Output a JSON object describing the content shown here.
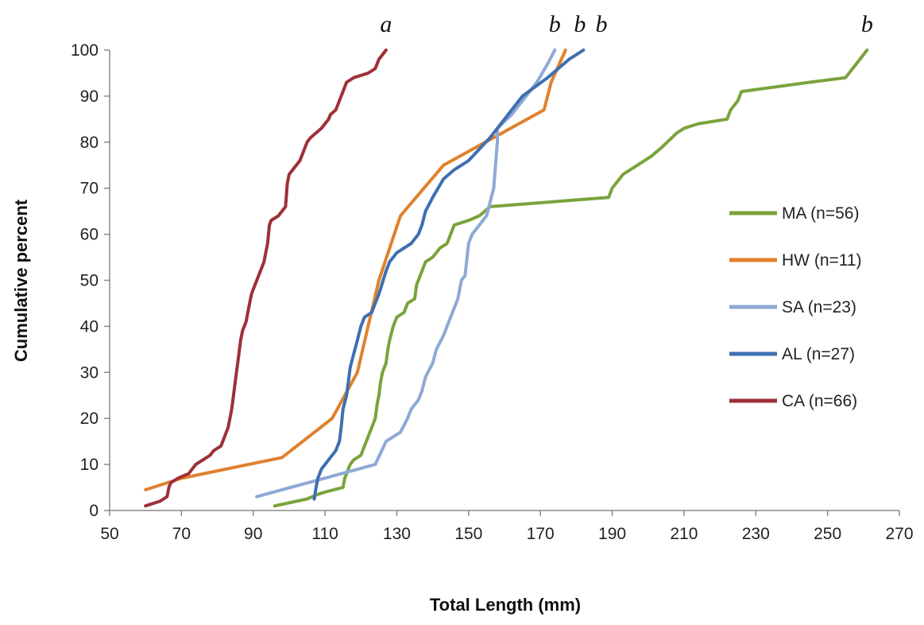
{
  "chart_data": {
    "type": "line",
    "title": "",
    "xlabel": "Total Length (mm)",
    "ylabel": "Cumulative percent",
    "xlim": [
      50,
      270
    ],
    "ylim": [
      0,
      100
    ],
    "xticks": [
      "50",
      "70",
      "90",
      "110",
      "130",
      "150",
      "170",
      "190",
      "210",
      "230",
      "250",
      "270"
    ],
    "yticks": [
      "0",
      "10",
      "20",
      "30",
      "40",
      "50",
      "60",
      "70",
      "80",
      "90",
      "100"
    ],
    "grid": false,
    "legend_position": "right",
    "series": [
      {
        "name": "MA (n=56)",
        "color": "#7aa33b",
        "points": [
          [
            96,
            1
          ],
          [
            105,
            2.5
          ],
          [
            108,
            3.5
          ],
          [
            110,
            4
          ],
          [
            115,
            5
          ],
          [
            115.5,
            7
          ],
          [
            116,
            8
          ],
          [
            117,
            10
          ],
          [
            118,
            11
          ],
          [
            120,
            12
          ],
          [
            121,
            14
          ],
          [
            122,
            16
          ],
          [
            123,
            18
          ],
          [
            124,
            20
          ],
          [
            124.5,
            23
          ],
          [
            125,
            25
          ],
          [
            125.5,
            28
          ],
          [
            126,
            30
          ],
          [
            127,
            32
          ],
          [
            127.5,
            35
          ],
          [
            128,
            37
          ],
          [
            129,
            40
          ],
          [
            130,
            42
          ],
          [
            132,
            43
          ],
          [
            133,
            45
          ],
          [
            135,
            46
          ],
          [
            135.5,
            49
          ],
          [
            136,
            50
          ],
          [
            137,
            52
          ],
          [
            138,
            54
          ],
          [
            140,
            55
          ],
          [
            141,
            56
          ],
          [
            142,
            57
          ],
          [
            144,
            58
          ],
          [
            145,
            60
          ],
          [
            146,
            62
          ],
          [
            150,
            63
          ],
          [
            153,
            64
          ],
          [
            156,
            66
          ],
          [
            189,
            68
          ],
          [
            190,
            70
          ],
          [
            192,
            72
          ],
          [
            193,
            73
          ],
          [
            197,
            75
          ],
          [
            201,
            77
          ],
          [
            204,
            79
          ],
          [
            208,
            82
          ],
          [
            210,
            83
          ],
          [
            214,
            84
          ],
          [
            222,
            85
          ],
          [
            223,
            87
          ],
          [
            225,
            89
          ],
          [
            226,
            91
          ],
          [
            245,
            93
          ],
          [
            255,
            94
          ],
          [
            258,
            97
          ],
          [
            261,
            100
          ]
        ]
      },
      {
        "name": "HW (n=11)",
        "color": "#e0812e",
        "points": [
          [
            60,
            4.5
          ],
          [
            70,
            7
          ],
          [
            98,
            11.5
          ],
          [
            112,
            20
          ],
          [
            119,
            30
          ],
          [
            122,
            40
          ],
          [
            125,
            50
          ],
          [
            131,
            64
          ],
          [
            143,
            75
          ],
          [
            150,
            78
          ],
          [
            171,
            87
          ],
          [
            173,
            93
          ],
          [
            177,
            100
          ]
        ]
      },
      {
        "name": "SA (n=23)",
        "color": "#8ea9d6",
        "points": [
          [
            91,
            3
          ],
          [
            124,
            10
          ],
          [
            127,
            15
          ],
          [
            131,
            17
          ],
          [
            133,
            20
          ],
          [
            134,
            22
          ],
          [
            136,
            24
          ],
          [
            137,
            26
          ],
          [
            138,
            29
          ],
          [
            140,
            32
          ],
          [
            141,
            35
          ],
          [
            143,
            38
          ],
          [
            145,
            42
          ],
          [
            147,
            46
          ],
          [
            148,
            50
          ],
          [
            149,
            51
          ],
          [
            150,
            58
          ],
          [
            151,
            60
          ],
          [
            153,
            62
          ],
          [
            155,
            64
          ],
          [
            156,
            67
          ],
          [
            157,
            70
          ],
          [
            158,
            80
          ],
          [
            158,
            83
          ],
          [
            162,
            86
          ],
          [
            165,
            89
          ],
          [
            169,
            93
          ],
          [
            172,
            97
          ],
          [
            174,
            100
          ]
        ]
      },
      {
        "name": "AL (n=27)",
        "color": "#3e6fb0",
        "points": [
          [
            107,
            2.5
          ],
          [
            107.5,
            5
          ],
          [
            108,
            7
          ],
          [
            109,
            9
          ],
          [
            110,
            10
          ],
          [
            113,
            13
          ],
          [
            114,
            15
          ],
          [
            114.5,
            18
          ],
          [
            115,
            22
          ],
          [
            116,
            25
          ],
          [
            116.5,
            28
          ],
          [
            117,
            31
          ],
          [
            118,
            34
          ],
          [
            119,
            37
          ],
          [
            120,
            40
          ],
          [
            121,
            42
          ],
          [
            123,
            43
          ],
          [
            124,
            45
          ],
          [
            125,
            47
          ],
          [
            127,
            52
          ],
          [
            128,
            54
          ],
          [
            130,
            56
          ],
          [
            134,
            58
          ],
          [
            136,
            60
          ],
          [
            137,
            62
          ],
          [
            138,
            65
          ],
          [
            140,
            68
          ],
          [
            143,
            72
          ],
          [
            146,
            74
          ],
          [
            148,
            75
          ],
          [
            150,
            76
          ],
          [
            156,
            81
          ],
          [
            158,
            83
          ],
          [
            162,
            87
          ],
          [
            165,
            90
          ],
          [
            172,
            94
          ],
          [
            178,
            98
          ],
          [
            182,
            100
          ]
        ]
      },
      {
        "name": "CA (n=66)",
        "color": "#9e3037",
        "points": [
          [
            60,
            1
          ],
          [
            64,
            2
          ],
          [
            66,
            3
          ],
          [
            66.5,
            5
          ],
          [
            67,
            6
          ],
          [
            69,
            7
          ],
          [
            72,
            8
          ],
          [
            73,
            9
          ],
          [
            74,
            10
          ],
          [
            76,
            11
          ],
          [
            78,
            12
          ],
          [
            79,
            13
          ],
          [
            81,
            14
          ],
          [
            82,
            16
          ],
          [
            83,
            18
          ],
          [
            83.5,
            20
          ],
          [
            84,
            22
          ],
          [
            84.5,
            25
          ],
          [
            85,
            28
          ],
          [
            85.5,
            31
          ],
          [
            86,
            34
          ],
          [
            86.5,
            37
          ],
          [
            87,
            39
          ],
          [
            88,
            41
          ],
          [
            88.5,
            43
          ],
          [
            89,
            45
          ],
          [
            89.5,
            47
          ],
          [
            90,
            48
          ],
          [
            91,
            50
          ],
          [
            92,
            52
          ],
          [
            93,
            54
          ],
          [
            93.5,
            56
          ],
          [
            94,
            58
          ],
          [
            94.5,
            62
          ],
          [
            95,
            63
          ],
          [
            97,
            64
          ],
          [
            98,
            65
          ],
          [
            99,
            66
          ],
          [
            99.5,
            71
          ],
          [
            100,
            73
          ],
          [
            101,
            74
          ],
          [
            103,
            76
          ],
          [
            104,
            78
          ],
          [
            105,
            80
          ],
          [
            106,
            81
          ],
          [
            109,
            83
          ],
          [
            111,
            85
          ],
          [
            111.5,
            86
          ],
          [
            113,
            87
          ],
          [
            114,
            89
          ],
          [
            115,
            91
          ],
          [
            116,
            93
          ],
          [
            118,
            94
          ],
          [
            122,
            95
          ],
          [
            124,
            96
          ],
          [
            125,
            98
          ],
          [
            127,
            100
          ]
        ]
      }
    ],
    "annotations": [
      {
        "text": "a",
        "x": 127
      },
      {
        "text": "b",
        "x": 174
      },
      {
        "text": "b",
        "x": 181
      },
      {
        "text": "b",
        "x": 187
      },
      {
        "text": "b",
        "x": 261
      }
    ]
  }
}
